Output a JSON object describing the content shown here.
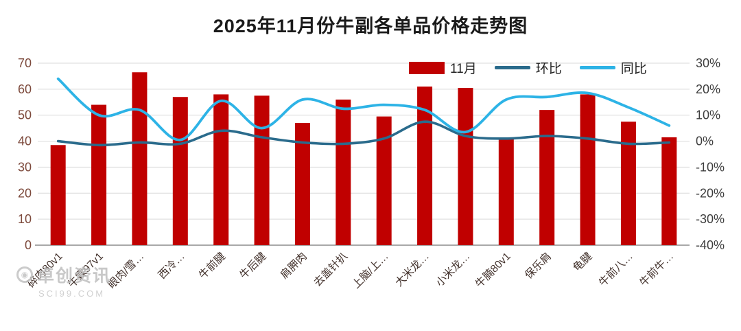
{
  "title": "2025年11月份牛副各单品价格走势图",
  "watermark": {
    "name": "卓创资讯",
    "site": "SCI99.COM"
  },
  "chart_data": {
    "type": "bar",
    "subtype": "bar+line combo, lines on secondary percent axis",
    "title": "2025年11月份牛副各单品价格走势图",
    "categories": [
      "碎肉80v1",
      "牛霖97v1",
      "眼肉/雪…",
      "西冷…",
      "牛前腱",
      "牛后腱",
      "肩胛肉",
      "去盖针扒",
      "上脑/上…",
      "大米龙…",
      "小米龙…",
      "牛腩80v1",
      "保乐肩",
      "龟腱",
      "牛前八…",
      "牛前牛…"
    ],
    "series": [
      {
        "name": "11月",
        "type": "bar",
        "axis": "left",
        "color": "#c00000",
        "values": [
          38.5,
          54,
          66.5,
          57,
          58,
          57.5,
          47,
          56,
          49.5,
          61,
          60.5,
          41,
          52,
          58,
          47.5,
          41.5
        ]
      },
      {
        "name": "环比",
        "type": "line",
        "axis": "right",
        "unit": "%",
        "color": "#2a6b8c",
        "values": [
          0,
          -1.5,
          -0.5,
          -1,
          4,
          1.5,
          -0.5,
          -1,
          1,
          7.5,
          2,
          1,
          2,
          1,
          -1,
          -0.5
        ]
      },
      {
        "name": "同比",
        "type": "line",
        "axis": "right",
        "unit": "%",
        "color": "#2db3e6",
        "values": [
          24,
          10,
          12,
          0.5,
          15.5,
          5,
          16,
          12.5,
          14,
          12,
          3.5,
          16,
          17,
          18.5,
          13,
          6
        ]
      }
    ],
    "left_axis": {
      "min": 0,
      "max": 70,
      "ticks": [
        0,
        10,
        20,
        30,
        40,
        50,
        60,
        70
      ]
    },
    "right_axis": {
      "min": -40,
      "max": 30,
      "tick_values": [
        30,
        20,
        10,
        0,
        -10,
        -20,
        -30,
        -40
      ],
      "tick_labels": [
        "30%",
        "20%",
        "10%",
        "0%",
        "-10%",
        "-20%",
        "-30%",
        "-40%"
      ]
    },
    "grid": true,
    "legend_position": "top-right"
  }
}
